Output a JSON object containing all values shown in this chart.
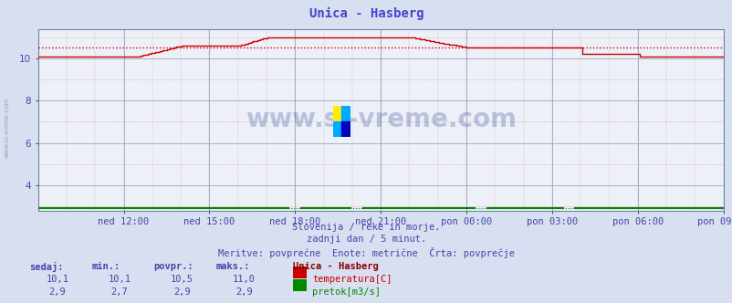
{
  "title": "Unica - Hasberg",
  "title_color": "#4444cc",
  "bg_color": "#d8dff0",
  "plot_bg_color": "#eef0f8",
  "grid_color_major": "#8899bb",
  "grid_color_minor_x": "#cc7777",
  "grid_color_minor_y": "#cc7777",
  "ylim": [
    2.8,
    11.4
  ],
  "yticks": [
    4,
    6,
    8,
    10
  ],
  "xlabel_color": "#4444aa",
  "xtick_labels": [
    "ned 12:00",
    "ned 15:00",
    "ned 18:00",
    "ned 21:00",
    "pon 00:00",
    "pon 03:00",
    "pon 06:00",
    "pon 09:00"
  ],
  "xtick_positions": [
    0.125,
    0.25,
    0.375,
    0.5,
    0.625,
    0.75,
    0.875,
    1.0
  ],
  "temp_avg": 10.5,
  "flow_avg": 2.9,
  "temp_color": "#cc0000",
  "flow_color": "#008800",
  "watermark": "www.si-vreme.com",
  "watermark_color": "#1a3a8a",
  "subtitle1": "Slovenija / reke in morje.",
  "subtitle2": "zadnji dan / 5 minut.",
  "subtitle3": "Meritve: povprečne  Enote: metrične  Črta: povprečje",
  "subtitle_color": "#4444aa",
  "legend_title": "Unica - Hasberg",
  "legend_title_color": "#880000",
  "label_sedaj": "sedaj:",
  "label_min": "min.:",
  "label_povpr": "povpr.:",
  "label_maks": "maks.:",
  "val_temp_sedaj": "10,1",
  "val_temp_min": "10,1",
  "val_temp_povpr": "10,5",
  "val_temp_maks": "11,0",
  "val_flow_sedaj": "2,9",
  "val_flow_min": "2,7",
  "val_flow_povpr": "2,9",
  "val_flow_maks": "2,9",
  "label_temp": "temperatura[C]",
  "label_flow": "pretok[m3/s]",
  "label_color": "#4444aa",
  "n_points": 288,
  "left_label": "www.si-vreme.com"
}
